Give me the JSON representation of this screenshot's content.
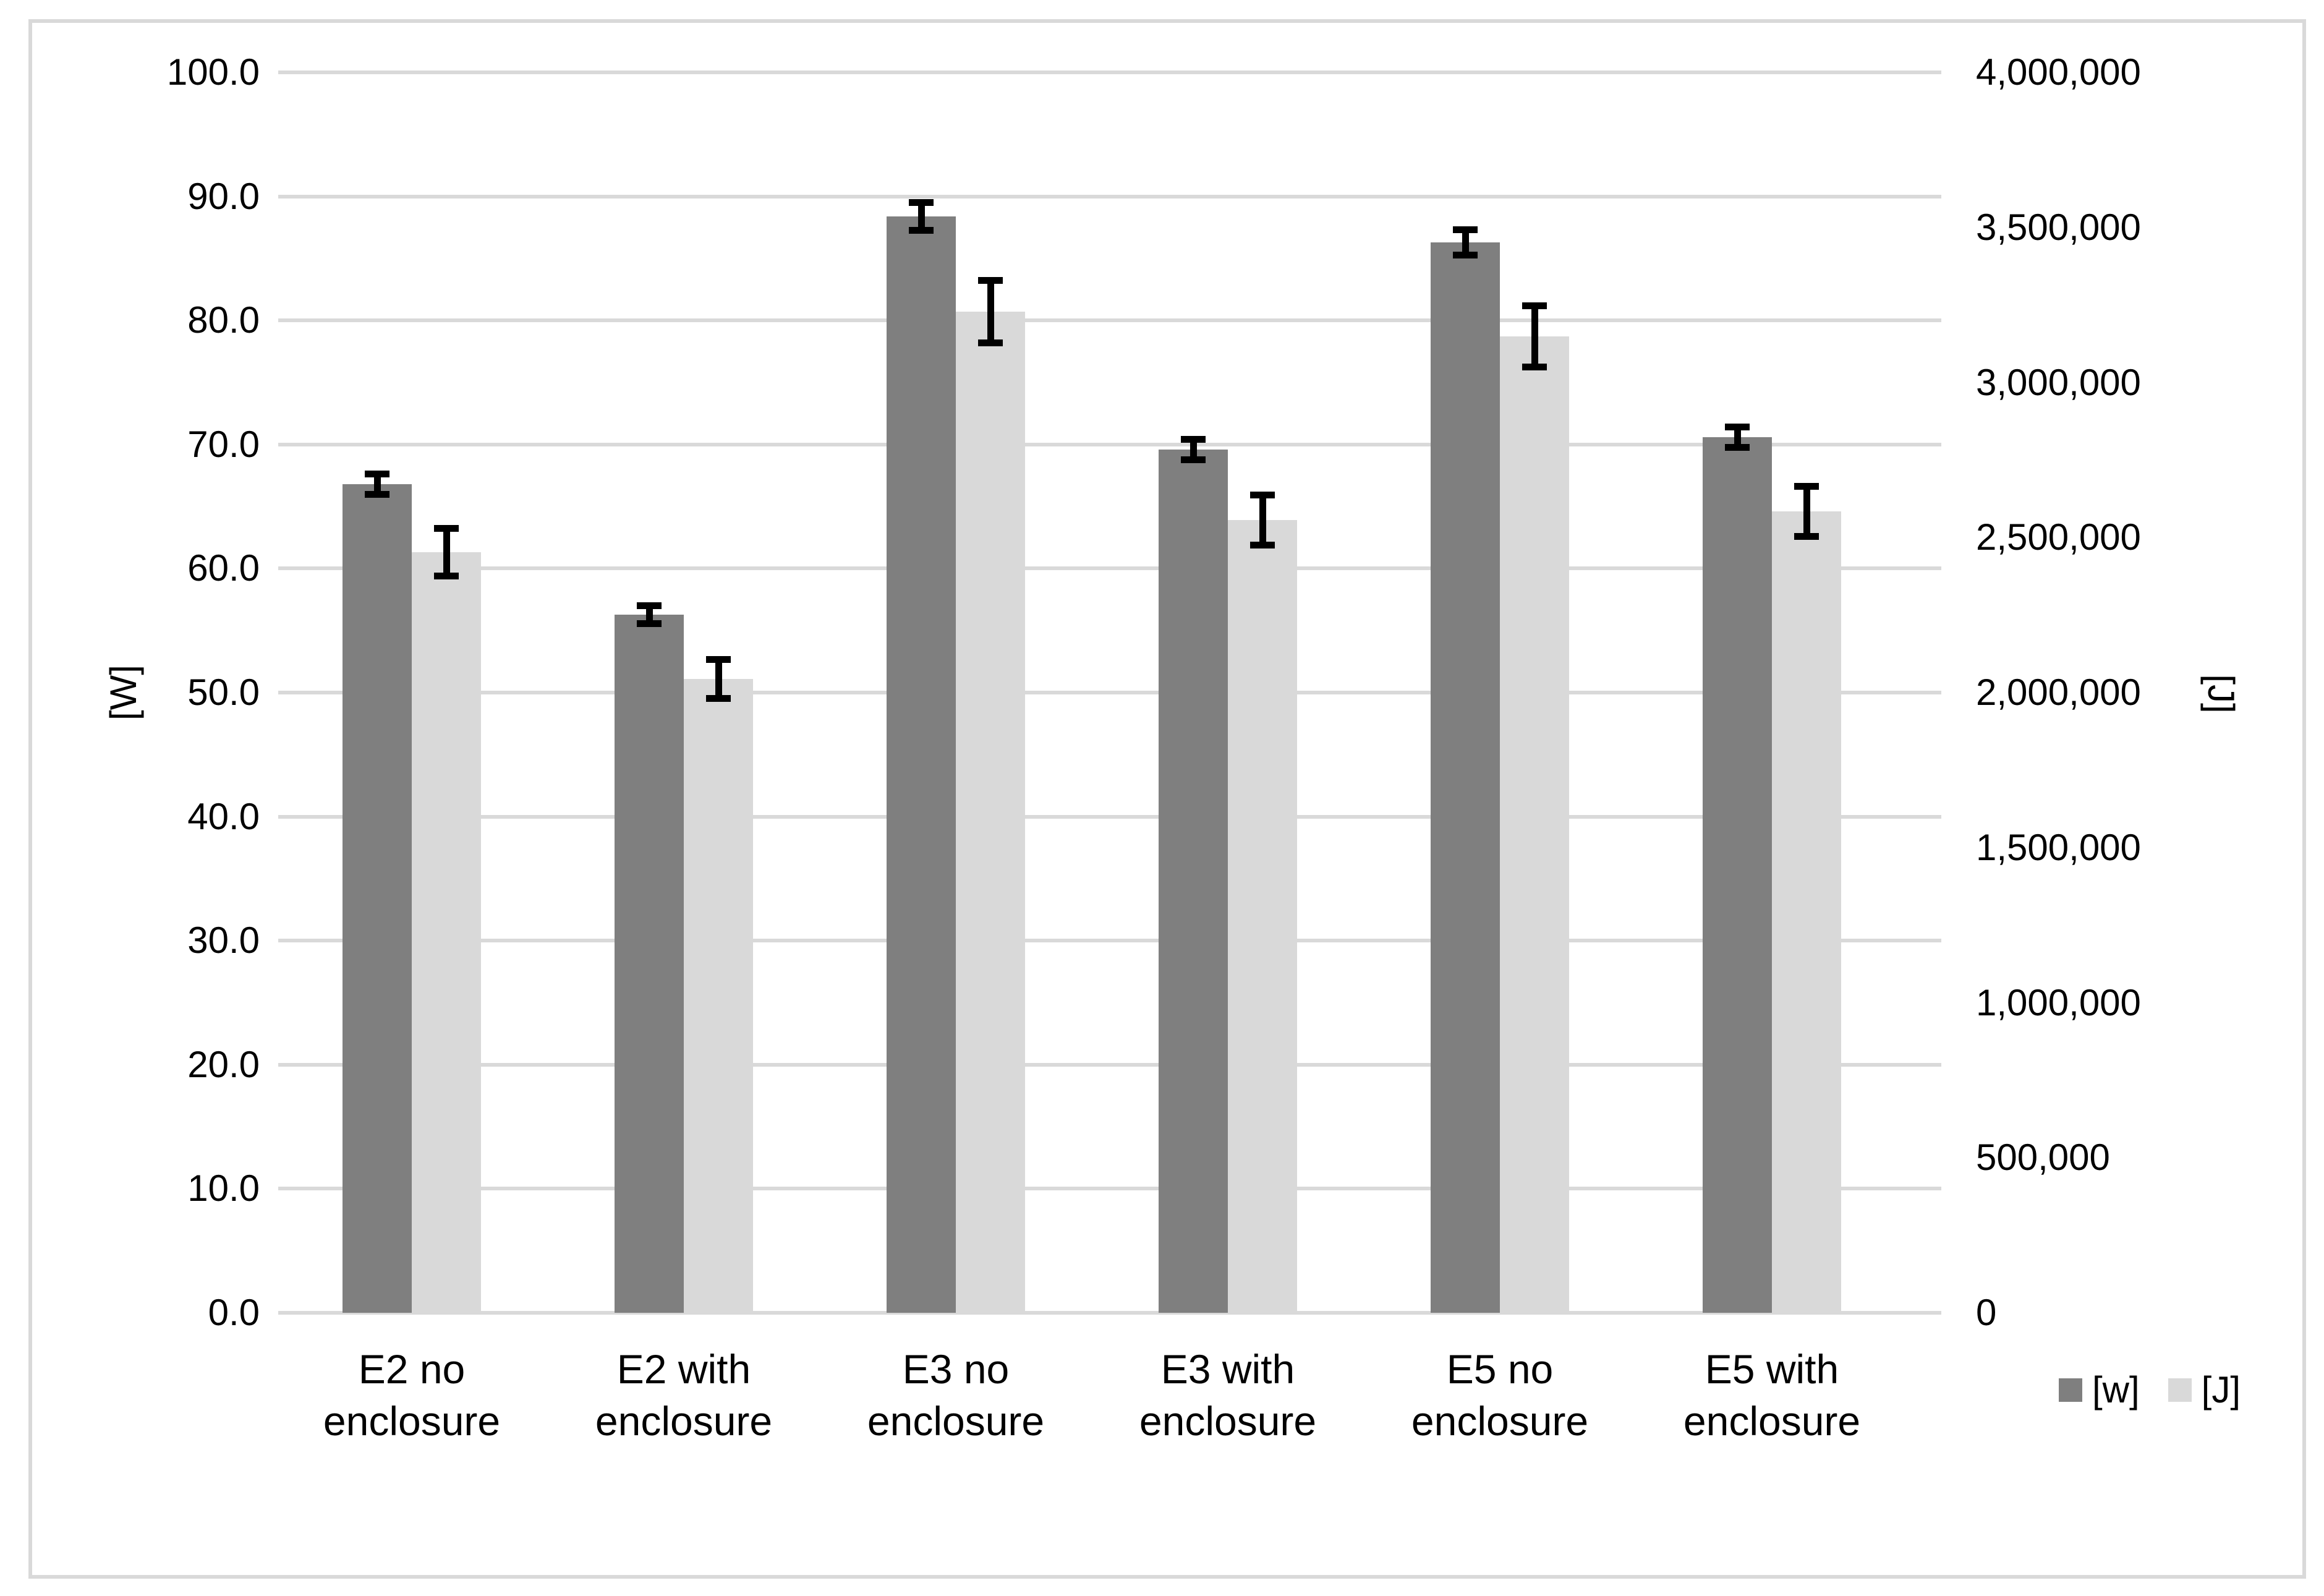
{
  "chart_data": {
    "type": "bar",
    "categories": [
      "E2 no enclosure",
      "E2 with enclosure",
      "E3 no enclosure",
      "E3 with enclosure",
      "E5 no enclosure",
      "E5 with enclosure"
    ],
    "series": [
      {
        "name": "[w]",
        "axis": "left",
        "color": "#7f7f7f",
        "values": [
          66.8,
          56.3,
          88.4,
          69.6,
          86.3,
          70.6
        ],
        "error_bars": [
          1.1,
          1.0,
          1.4,
          1.1,
          1.3,
          1.1
        ]
      },
      {
        "name": "[J]",
        "axis": "right",
        "color": "#d9d9d9",
        "values": [
          2452000,
          2044000,
          3228000,
          2556000,
          3148000,
          2584000
        ],
        "error_bars": [
          88000,
          74000,
          112000,
          92000,
          110000,
          92000
        ]
      }
    ],
    "left_axis": {
      "title": "[W]",
      "min": 0,
      "max": 100,
      "tick_labels": [
        "100.0",
        "90.0",
        "80.0",
        "70.0",
        "60.0",
        "50.0",
        "40.0",
        "30.0",
        "20.0",
        "10.0",
        "0.0"
      ]
    },
    "right_axis": {
      "title": "[J]",
      "min": 0,
      "max": 4000000,
      "tick_labels": [
        "4,000,000",
        "3,500,000",
        "3,000,000",
        "2,500,000",
        "2,000,000",
        "1,500,000",
        "1,000,000",
        "500,000",
        "0"
      ]
    },
    "grid": true,
    "legend_position": "bottom-right",
    "gridline_color": "#d9d9d9",
    "error_bar_color": "#000000"
  },
  "legend": {
    "items": [
      {
        "label": "[w]",
        "swatch_color": "#7f7f7f"
      },
      {
        "label": "[J]",
        "swatch_color": "#d9d9d9"
      }
    ]
  }
}
